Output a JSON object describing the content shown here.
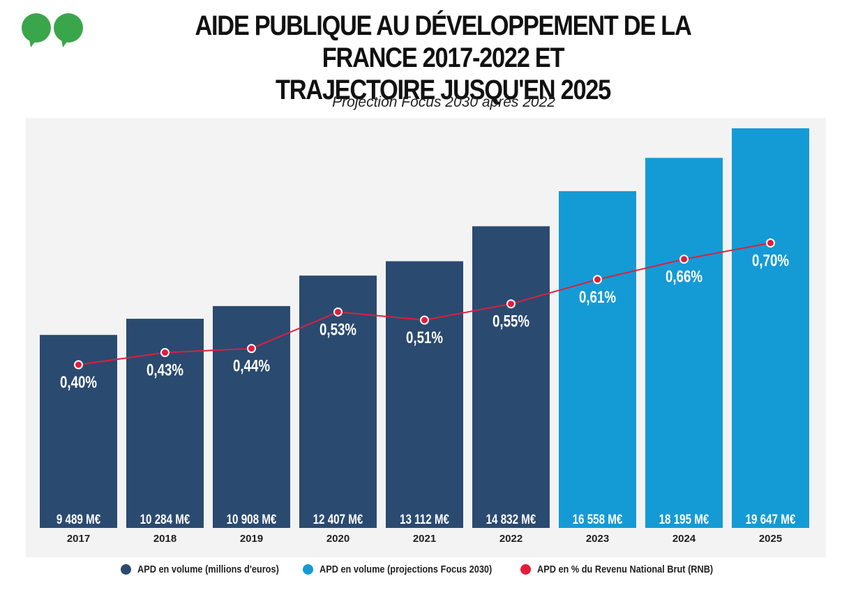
{
  "header": {
    "title_line1": "AIDE PUBLIQUE AU DÉVELOPPEMENT DE LA FRANCE 2017-2022 ET",
    "title_line2": "TRAJECTOIRE JUSQU'EN 2025",
    "subtitle": "Projection Focus 2030 après 2022"
  },
  "colors": {
    "actual": "#2b4a70",
    "projection": "#149bd5",
    "line": "#e01e3c",
    "logo": "#3aa64b"
  },
  "legend": [
    {
      "label": "APD en volume (millions d'euros)",
      "color": "#2b4a70"
    },
    {
      "label": "APD en volume (projections Focus 2030)",
      "color": "#149bd5"
    },
    {
      "label": "APD en % du Revenu National Brut (RNB)",
      "color": "#e01e3c"
    }
  ],
  "chart_data": {
    "type": "bar",
    "categories": [
      "2017",
      "2018",
      "2019",
      "2020",
      "2021",
      "2022",
      "2023",
      "2024",
      "2025"
    ],
    "series": [
      {
        "name": "APD en volume (millions d'euros)",
        "values": [
          9489,
          10284,
          10908,
          12407,
          13112,
          14832,
          16558,
          18195,
          19647
        ],
        "value_labels": [
          "9 489 M€",
          "10 284 M€",
          "10 908 M€",
          "12 407 M€",
          "13 112 M€",
          "14 832 M€",
          "16 558 M€",
          "18 195 M€",
          "19 647 M€"
        ],
        "projection": [
          false,
          false,
          false,
          false,
          false,
          false,
          true,
          true,
          true
        ]
      },
      {
        "name": "APD en % du Revenu National Brut (RNB)",
        "type": "line",
        "values": [
          0.4,
          0.43,
          0.44,
          0.53,
          0.51,
          0.55,
          0.61,
          0.66,
          0.7
        ],
        "value_labels": [
          "0,40%",
          "0,43%",
          "0,44%",
          "0,53%",
          "0,51%",
          "0,55%",
          "0,61%",
          "0,66%",
          "0,70%"
        ]
      }
    ],
    "grid": false,
    "legend_position": "bottom"
  }
}
